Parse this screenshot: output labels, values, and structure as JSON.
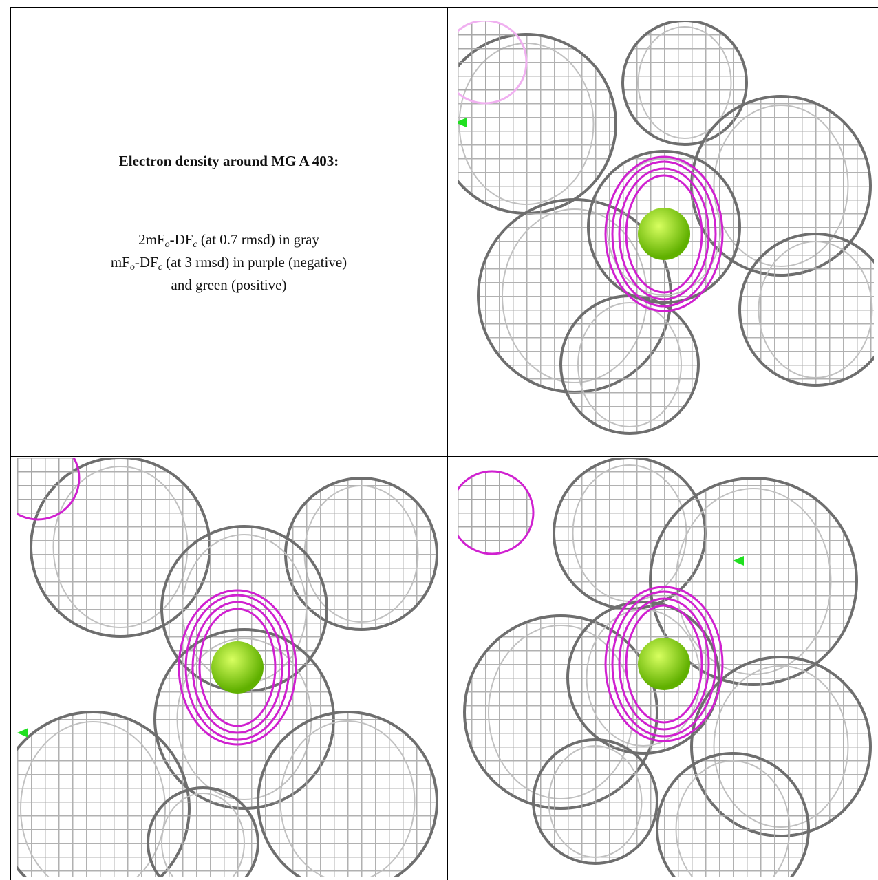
{
  "caption": {
    "title": "Electron density around MG A 403:",
    "lines": [
      [
        {
          "text": "2mF"
        },
        {
          "text": "o",
          "sub": true
        },
        {
          "text": "-DF"
        },
        {
          "text": "c",
          "sub": true
        },
        {
          "text": " (at 0.7 rmsd) in gray"
        }
      ],
      [
        {
          "text": "mF"
        },
        {
          "text": "o",
          "sub": true
        },
        {
          "text": "-DF"
        },
        {
          "text": "c",
          "sub": true
        },
        {
          "text": " (at 3 rmsd) in purple (negative)"
        }
      ],
      [
        {
          "text": "and green (positive)"
        }
      ]
    ]
  }
}
